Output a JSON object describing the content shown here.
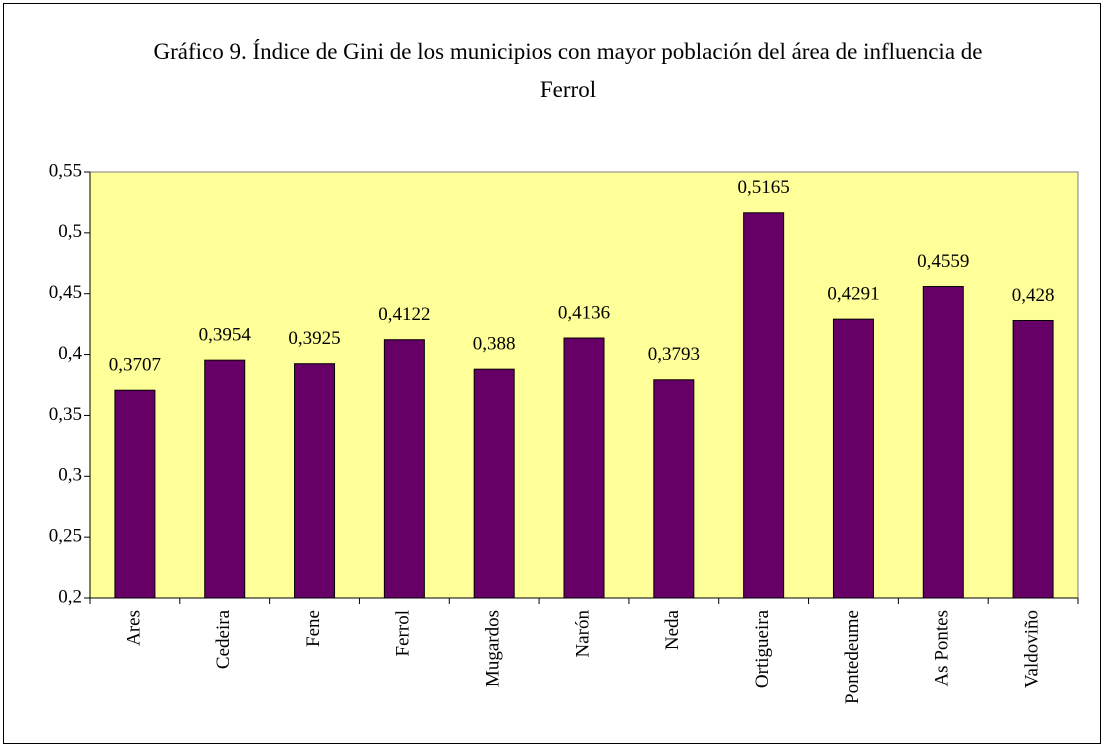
{
  "chart_data": {
    "type": "bar",
    "title": "Gráfico 9. Índice de Gini de los municipios con mayor población del área de influencia de Ferrol",
    "categories": [
      "Ares",
      "Cedeira",
      "Fene",
      "Ferrol",
      "Mugardos",
      "Narón",
      "Neda",
      "Ortigueira",
      "Pontedeume",
      "As Pontes",
      "Valdoviño"
    ],
    "values": [
      0.3707,
      0.3954,
      0.3925,
      0.4122,
      0.388,
      0.4136,
      0.3793,
      0.5165,
      0.4291,
      0.4559,
      0.428
    ],
    "value_labels": [
      "0,3707",
      "0,3954",
      "0,3925",
      "0,4122",
      "0,388",
      "0,4136",
      "0,3793",
      "0,5165",
      "0,4291",
      "0,4559",
      "0,428"
    ],
    "color": "#660066",
    "ylim": [
      0.2,
      0.55
    ],
    "yticks": [
      {
        "value": 0.2,
        "label": "0,2"
      },
      {
        "value": 0.25,
        "label": "0,25"
      },
      {
        "value": 0.3,
        "label": "0,3"
      },
      {
        "value": 0.35,
        "label": "0,35"
      },
      {
        "value": 0.4,
        "label": "0,4"
      },
      {
        "value": 0.45,
        "label": "0,45"
      },
      {
        "value": 0.5,
        "label": "0,5"
      },
      {
        "value": 0.55,
        "label": "0,55"
      }
    ],
    "plot_background": "#ffff99"
  }
}
